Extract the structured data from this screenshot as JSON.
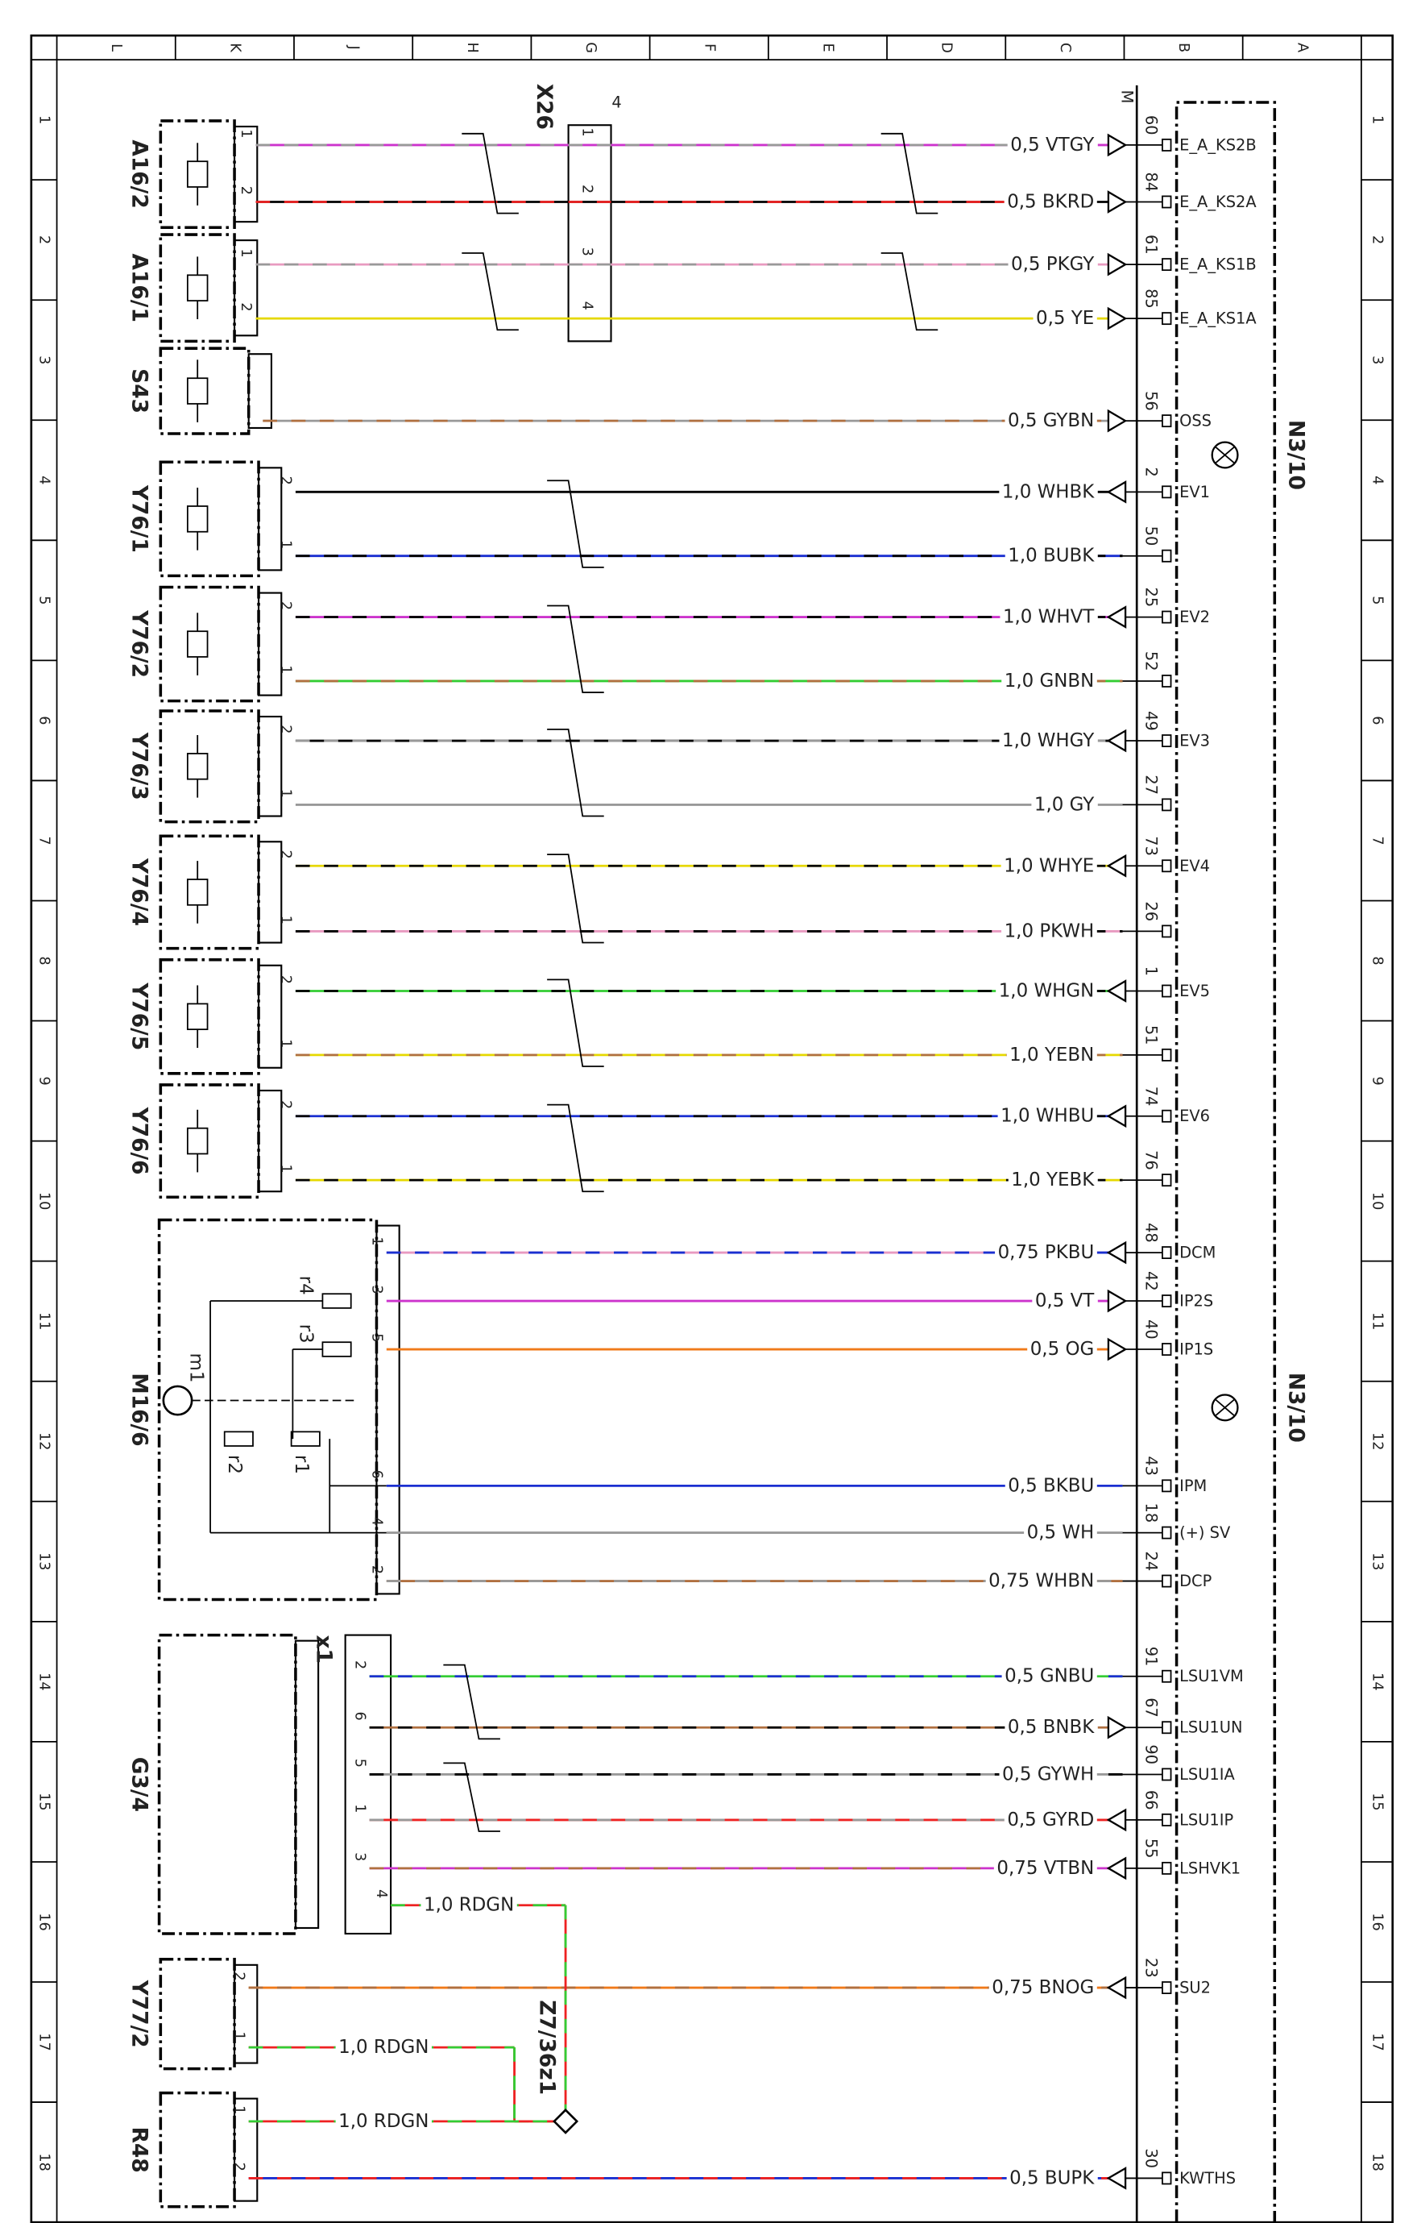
{
  "frame": {
    "columns": [
      "L",
      "K",
      "J",
      "H",
      "G",
      "F",
      "E",
      "D",
      "C",
      "B",
      "A"
    ],
    "rows": [
      "1",
      "2",
      "3",
      "4",
      "5",
      "6",
      "7",
      "8",
      "9",
      "10",
      "11",
      "12",
      "13",
      "14",
      "15",
      "16",
      "17",
      "18"
    ]
  },
  "control_unit": {
    "labels": [
      "N3/10",
      "N3/10"
    ],
    "corner": "M"
  },
  "connectors": {
    "x26": {
      "label": "X26",
      "size": "4"
    },
    "x1": {
      "label": "x1"
    },
    "splice": {
      "label": "Z7/36z1"
    }
  },
  "components": [
    {
      "label": "A16/2"
    },
    {
      "label": "A16/1"
    },
    {
      "label": "S43"
    },
    {
      "label": "Y76/1"
    },
    {
      "label": "Y76/2"
    },
    {
      "label": "Y76/3"
    },
    {
      "label": "Y76/4"
    },
    {
      "label": "Y76/5"
    },
    {
      "label": "Y76/6"
    },
    {
      "label": "M16/6"
    },
    {
      "label": "G3/4"
    },
    {
      "label": "Y77/2"
    },
    {
      "label": "R48"
    }
  ],
  "m16_parts": [
    "r4",
    "r3",
    "r2",
    "r1",
    "m1"
  ],
  "wires": [
    {
      "label": "0,5 VTGY",
      "pin": "60",
      "signal": "E_A_KS2B",
      "component_pin": "1",
      "x26_pin": "1"
    },
    {
      "label": "0,5 BKRD",
      "pin": "84",
      "signal": "E_A_KS2A",
      "component_pin": "2",
      "x26_pin": "2"
    },
    {
      "label": "0,5 PKGY",
      "pin": "61",
      "signal": "E_A_KS1B",
      "component_pin": "1",
      "x26_pin": "3"
    },
    {
      "label": "0,5 YE",
      "pin": "85",
      "signal": "E_A_KS1A",
      "component_pin": "2",
      "x26_pin": "4"
    },
    {
      "label": "0,5 GYBN",
      "pin": "56",
      "signal": "OSS"
    },
    {
      "label": "1,0 WHBK",
      "pin": "2",
      "signal": "EV1",
      "component_pin": "2"
    },
    {
      "label": "1,0 BUBK",
      "pin": "50",
      "component_pin": "1"
    },
    {
      "label": "1,0 WHVT",
      "pin": "25",
      "signal": "EV2",
      "component_pin": "2"
    },
    {
      "label": "1,0 GNBN",
      "pin": "52",
      "component_pin": "1"
    },
    {
      "label": "1,0 WHGY",
      "pin": "49",
      "signal": "EV3",
      "component_pin": "2"
    },
    {
      "label": "1,0 GY",
      "pin": "27",
      "component_pin": "1"
    },
    {
      "label": "1,0 WHYE",
      "pin": "73",
      "signal": "EV4",
      "component_pin": "2"
    },
    {
      "label": "1,0 PKWH",
      "pin": "26",
      "component_pin": "1"
    },
    {
      "label": "1,0 WHGN",
      "pin": "1",
      "signal": "EV5",
      "component_pin": "2"
    },
    {
      "label": "1,0 YEBN",
      "pin": "51",
      "component_pin": "1"
    },
    {
      "label": "1,0 WHBU",
      "pin": "74",
      "signal": "EV6",
      "component_pin": "2"
    },
    {
      "label": "1,0 YEBK",
      "pin": "76",
      "component_pin": "1"
    },
    {
      "label": "0,75 PKBU",
      "pin": "48",
      "signal": "DCM",
      "component_pin": "1"
    },
    {
      "label": "0,5 VT",
      "pin": "42",
      "signal": "IP2S",
      "component_pin": "3"
    },
    {
      "label": "0,5 OG",
      "pin": "40",
      "signal": "IP1S",
      "component_pin": "5"
    },
    {
      "label": "0,5 BKBU",
      "pin": "43",
      "signal": "IPM",
      "component_pin": "6"
    },
    {
      "label": "0,5 WH",
      "pin": "18",
      "signal": "(+) SV",
      "component_pin": "4"
    },
    {
      "label": "0,75 WHBN",
      "pin": "24",
      "signal": "DCP",
      "component_pin": "2"
    },
    {
      "label": "0,5 GNBU",
      "pin": "91",
      "signal": "LSU1VM",
      "component_pin": "2"
    },
    {
      "label": "0,5 BNBK",
      "pin": "67",
      "signal": "LSU1UN",
      "component_pin": "6"
    },
    {
      "label": "0,5 GYWH",
      "pin": "90",
      "signal": "LSU1IA",
      "component_pin": "5"
    },
    {
      "label": "0,5 GYRD",
      "pin": "66",
      "signal": "LSU1IP",
      "component_pin": "1"
    },
    {
      "label": "0,75 VTBN",
      "pin": "55",
      "signal": "LSHVK1",
      "component_pin": "3"
    },
    {
      "label": "0,75 BNOG",
      "pin": "23",
      "signal": "SU2",
      "component_pin": "2"
    },
    {
      "label": "0,5 BUPK",
      "pin": "30",
      "signal": "KWTHS",
      "component_pin": "2"
    }
  ],
  "ground_wires": [
    {
      "label": "1,0 RDGN",
      "component_pin": "4"
    },
    {
      "label": "1,0 RDGN",
      "component_pin": "1"
    },
    {
      "label": "1,0 RDGN",
      "component_pin": "1"
    }
  ]
}
